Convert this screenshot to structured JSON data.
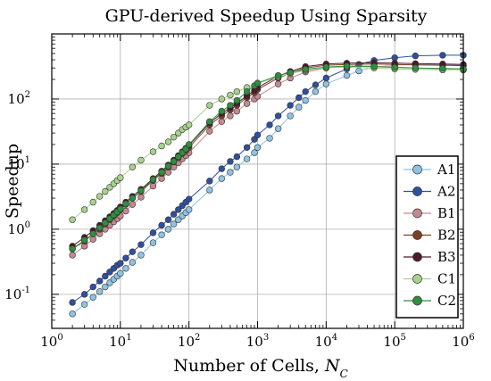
{
  "chart_data": {
    "type": "line",
    "title": "GPU-derived Speedup Using Sparsity",
    "xlabel": "Number of Cells, ",
    "xlabel_symbol": "N",
    "xlabel_sub": "C",
    "ylabel": "Speedup",
    "xscale": "log",
    "yscale": "log",
    "xlim": [
      1,
      1000000
    ],
    "ylim": [
      0.03,
      1000
    ],
    "grid": true,
    "legend_position": "bottom-right",
    "x_ticks": [
      {
        "base": "10",
        "exp": "0"
      },
      {
        "base": "10",
        "exp": "1"
      },
      {
        "base": "10",
        "exp": "2"
      },
      {
        "base": "10",
        "exp": "3"
      },
      {
        "base": "10",
        "exp": "4"
      },
      {
        "base": "10",
        "exp": "5"
      },
      {
        "base": "10",
        "exp": "6"
      }
    ],
    "y_ticks": [
      {
        "base": "10",
        "exp": "-1"
      },
      {
        "base": "10",
        "exp": "0"
      },
      {
        "base": "10",
        "exp": "1"
      },
      {
        "base": "10",
        "exp": "2"
      }
    ],
    "series": [
      {
        "name": "A1",
        "color": "#8ec3e3",
        "x": [
          2,
          3,
          4,
          5,
          6,
          7,
          8,
          9,
          10,
          12,
          15,
          20,
          30,
          40,
          50,
          60,
          70,
          80,
          90,
          100,
          200,
          300,
          400,
          500,
          700,
          900,
          1000,
          1500,
          2000,
          3000,
          4000,
          5000,
          7000,
          10000,
          20000,
          30000,
          50000,
          100000,
          200000,
          500000,
          1000000
        ],
        "y": [
          0.05,
          0.07,
          0.09,
          0.11,
          0.13,
          0.15,
          0.17,
          0.19,
          0.21,
          0.25,
          0.31,
          0.4,
          0.62,
          0.82,
          1.0,
          1.2,
          1.4,
          1.6,
          1.8,
          2.0,
          4.0,
          6.0,
          7.5,
          9.0,
          12,
          15,
          18,
          25,
          35,
          55,
          75,
          95,
          130,
          170,
          230,
          270,
          310,
          330,
          340,
          340,
          330
        ]
      },
      {
        "name": "A2",
        "color": "#2f4f9f",
        "x": [
          2,
          3,
          4,
          5,
          6,
          7,
          8,
          9,
          10,
          12,
          15,
          20,
          30,
          40,
          50,
          60,
          70,
          80,
          90,
          100,
          200,
          300,
          400,
          500,
          700,
          900,
          1000,
          1500,
          2000,
          3000,
          4000,
          5000,
          7000,
          10000,
          20000,
          30000,
          50000,
          100000,
          200000,
          500000,
          1000000
        ],
        "y": [
          0.075,
          0.1,
          0.13,
          0.16,
          0.19,
          0.22,
          0.25,
          0.28,
          0.3,
          0.36,
          0.45,
          0.58,
          0.88,
          1.15,
          1.4,
          1.7,
          2.0,
          2.3,
          2.6,
          2.9,
          5.5,
          8.5,
          11,
          13,
          18,
          24,
          28,
          40,
          55,
          80,
          105,
          130,
          165,
          210,
          290,
          340,
          390,
          430,
          460,
          470,
          470
        ]
      },
      {
        "name": "B1",
        "color": "#c4898f",
        "x": [
          2,
          3,
          4,
          5,
          6,
          7,
          8,
          9,
          10,
          12,
          15,
          20,
          30,
          40,
          50,
          60,
          70,
          80,
          90,
          100,
          200,
          300,
          400,
          500,
          700,
          900,
          1000,
          2000,
          3000,
          5000,
          10000,
          20000,
          50000,
          100000,
          200000,
          500000,
          1000000
        ],
        "y": [
          0.4,
          0.55,
          0.7,
          0.85,
          1.0,
          1.15,
          1.3,
          1.45,
          1.6,
          1.9,
          2.4,
          3.1,
          4.6,
          6.0,
          7.5,
          9.0,
          10.5,
          12,
          13.5,
          15,
          32,
          45,
          55,
          65,
          85,
          100,
          110,
          170,
          210,
          260,
          300,
          320,
          320,
          310,
          300,
          290,
          280
        ]
      },
      {
        "name": "B2",
        "color": "#7a4022",
        "x": [
          2,
          3,
          4,
          5,
          6,
          7,
          8,
          9,
          10,
          12,
          15,
          20,
          30,
          40,
          50,
          60,
          70,
          80,
          90,
          100,
          200,
          300,
          400,
          500,
          700,
          900,
          1000,
          2000,
          3000,
          5000,
          10000,
          20000,
          50000,
          100000,
          200000,
          500000,
          1000000
        ],
        "y": [
          0.5,
          0.65,
          0.85,
          1.0,
          1.2,
          1.4,
          1.6,
          1.8,
          2.0,
          2.4,
          3.0,
          3.8,
          5.6,
          7.2,
          9.0,
          10.8,
          12.5,
          14.5,
          16,
          18,
          40,
          55,
          68,
          80,
          105,
          125,
          140,
          210,
          250,
          300,
          330,
          340,
          345,
          340,
          335,
          330,
          325
        ]
      },
      {
        "name": "B3",
        "color": "#4d1a2c",
        "x": [
          2,
          3,
          4,
          5,
          6,
          7,
          8,
          9,
          10,
          12,
          15,
          20,
          30,
          40,
          50,
          60,
          70,
          80,
          90,
          100,
          200,
          300,
          400,
          500,
          700,
          900,
          1000,
          2000,
          3000,
          5000,
          10000,
          20000,
          50000,
          100000,
          200000,
          500000,
          1000000
        ],
        "y": [
          0.55,
          0.75,
          0.95,
          1.15,
          1.35,
          1.55,
          1.75,
          1.95,
          2.2,
          2.6,
          3.2,
          4.1,
          6.0,
          7.8,
          9.7,
          11.5,
          13.5,
          15.5,
          17.5,
          19.5,
          43,
          60,
          73,
          86,
          112,
          135,
          150,
          225,
          265,
          315,
          345,
          355,
          360,
          355,
          350,
          345,
          340
        ]
      },
      {
        "name": "C1",
        "color": "#a9d18e",
        "x": [
          2,
          3,
          4,
          5,
          6,
          7,
          8,
          9,
          10,
          15,
          20,
          30,
          40,
          50,
          60,
          70,
          80,
          90,
          100,
          200,
          300,
          400,
          500,
          700,
          1000,
          2000,
          3000,
          5000,
          10000,
          20000,
          50000,
          100000,
          200000,
          500000,
          1000000
        ],
        "y": [
          1.4,
          2.0,
          2.6,
          3.2,
          3.8,
          4.4,
          5.0,
          5.6,
          6.2,
          9.0,
          11.5,
          15.5,
          19,
          22,
          26,
          30,
          34,
          37,
          40,
          80,
          100,
          115,
          130,
          150,
          175,
          220,
          245,
          275,
          300,
          310,
          300,
          290,
          285,
          280,
          280
        ]
      },
      {
        "name": "C2",
        "color": "#2e8f3e",
        "x": [
          2,
          3,
          4,
          5,
          6,
          7,
          8,
          9,
          10,
          12,
          15,
          20,
          30,
          40,
          50,
          60,
          70,
          80,
          90,
          100,
          200,
          300,
          400,
          500,
          700,
          900,
          1000,
          2000,
          3000,
          5000,
          10000,
          20000,
          50000,
          100000,
          200000,
          500000,
          1000000
        ],
        "y": [
          0.5,
          0.68,
          0.85,
          1.05,
          1.25,
          1.45,
          1.65,
          1.85,
          2.05,
          2.45,
          3.0,
          3.9,
          5.8,
          7.5,
          9.3,
          11,
          13,
          15,
          17,
          20,
          45,
          65,
          80,
          95,
          130,
          160,
          175,
          230,
          255,
          285,
          310,
          320,
          315,
          305,
          300,
          295,
          290
        ]
      }
    ]
  }
}
